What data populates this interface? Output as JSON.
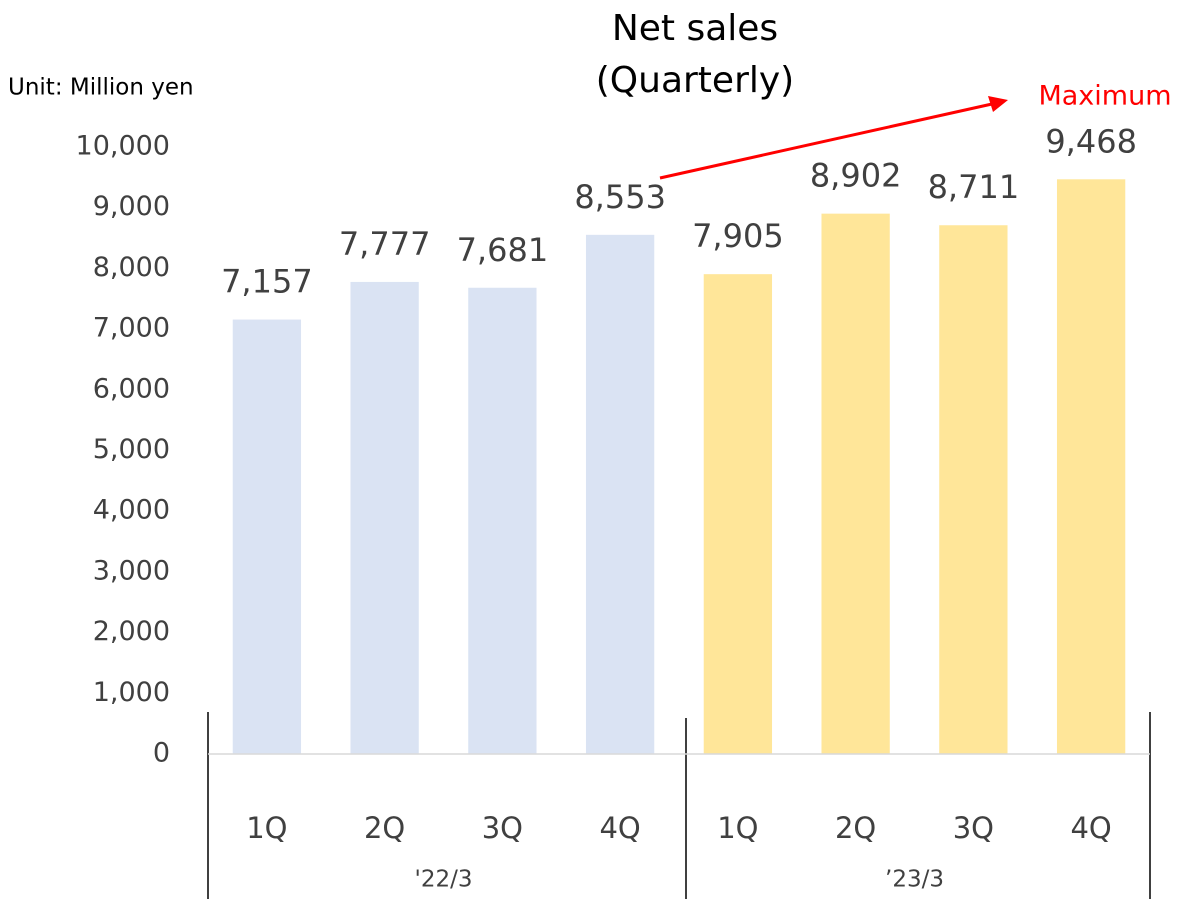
{
  "chart_data": {
    "type": "bar",
    "title": [
      "Net sales",
      "(Quarterly)"
    ],
    "unit_label": "Unit: Million yen",
    "annotation": {
      "text": "Maximum",
      "color": "#ff0000"
    },
    "groups": [
      {
        "label": "'22/3",
        "color": "#dae3f3",
        "categories": [
          "1Q",
          "2Q",
          "3Q",
          "4Q"
        ],
        "values": [
          7157,
          7777,
          7681,
          8553
        ],
        "value_labels": [
          "7,157",
          "7,777",
          "7,681",
          "8,553"
        ]
      },
      {
        "label": "’23/3",
        "color": "#ffe699",
        "categories": [
          "1Q",
          "2Q",
          "3Q",
          "4Q"
        ],
        "values": [
          7905,
          8902,
          8711,
          9468
        ],
        "value_labels": [
          "7,905",
          "8,902",
          "8,711",
          "9,468"
        ]
      }
    ],
    "ylim": [
      0,
      10000
    ],
    "yticks": [
      0,
      {
        "value": 1000,
        "label": "1,000"
      },
      {
        "value": 2000,
        "label": "2,000"
      },
      {
        "value": 3000,
        "label": "3,000"
      },
      {
        "value": 4000,
        "label": "4,000"
      },
      {
        "value": 5000,
        "label": "5,000"
      },
      {
        "value": 6000,
        "label": "6,000"
      },
      {
        "value": 7000,
        "label": "7,000"
      },
      {
        "value": 8000,
        "label": "8,000"
      },
      {
        "value": 9000,
        "label": "9,000"
      },
      {
        "value": 10000,
        "label": "10,000"
      }
    ],
    "grid": false
  }
}
